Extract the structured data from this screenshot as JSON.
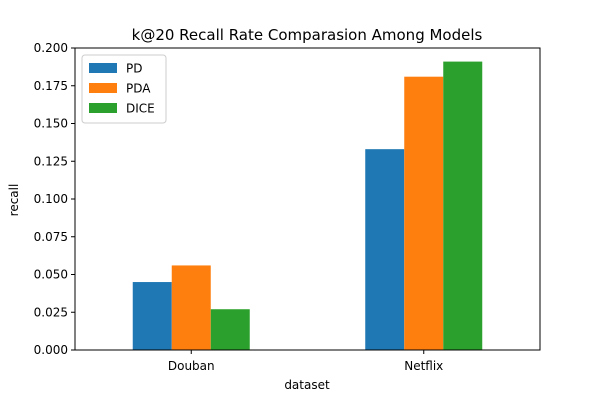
{
  "chart_data": {
    "type": "bar",
    "title": "k@20 Recall Rate Comparasion Among Models",
    "xlabel": "dataset",
    "ylabel": "recall",
    "categories": [
      "Douban",
      "Netflix"
    ],
    "series": [
      {
        "name": "PD",
        "values": [
          0.045,
          0.133
        ],
        "color": "#1f77b4"
      },
      {
        "name": "PDA",
        "values": [
          0.056,
          0.181
        ],
        "color": "#ff7f0e"
      },
      {
        "name": "DICE",
        "values": [
          0.027,
          0.191
        ],
        "color": "#2ca02c"
      }
    ],
    "ylim": [
      0.0,
      0.2
    ],
    "yticks": [
      "0.000",
      "0.025",
      "0.050",
      "0.075",
      "0.100",
      "0.125",
      "0.150",
      "0.175",
      "0.200"
    ],
    "grid": false,
    "legend_position": "top-left"
  }
}
